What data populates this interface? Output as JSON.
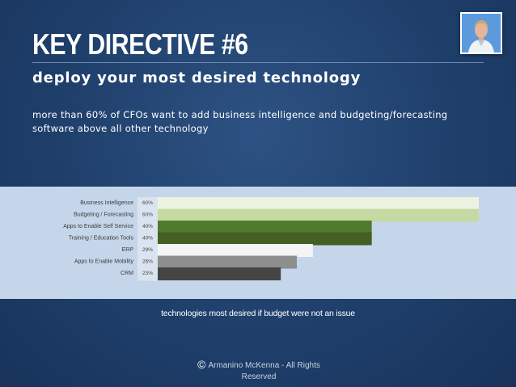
{
  "slide": {
    "title": "KEY DIRECTIVE #6",
    "subtitle": "deploy your most desired technology",
    "description": "more than 60% of CFOs want to add business intelligence and budgeting/forecasting software above all other technology",
    "caption": "technologies most desired if budget were not an issue",
    "footer": {
      "copyright_symbol": "©",
      "text": "Armanino McKenna - All Rights Reserved"
    },
    "avatar_icon": "presenter-photo"
  },
  "chart_data": {
    "type": "bar",
    "orientation": "horizontal",
    "categories": [
      "Business Intelligence",
      "Budgeting / Forecasting",
      "Apps to Enable Self Service",
      "Training / Education Tools",
      "ERP",
      "Apps to Enable Mobility",
      "CRM"
    ],
    "values": [
      60,
      60,
      40,
      40,
      29,
      26,
      23
    ],
    "value_labels": [
      "60%",
      "60%",
      "40%",
      "40%",
      "29%",
      "26%",
      "23%"
    ],
    "bar_colors": [
      "#eef3e1",
      "#c5d9a3",
      "#4f7b2c",
      "#435f22",
      "#f4f4f4",
      "#8e8e8e",
      "#454545"
    ],
    "xlim": [
      0,
      60
    ],
    "grid": false,
    "legend": "none"
  }
}
